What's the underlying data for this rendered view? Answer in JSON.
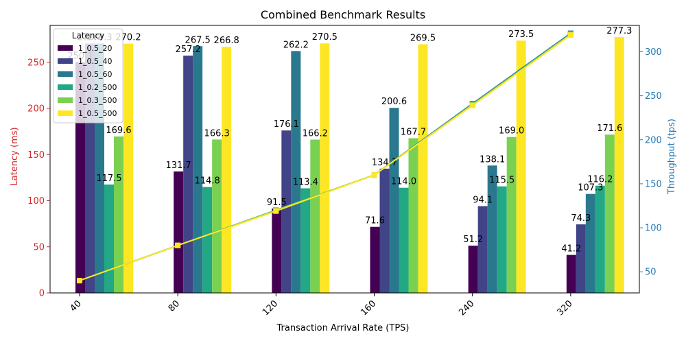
{
  "chart_data": {
    "type": "bar",
    "title": "Combined Benchmark Results",
    "xlabel": "Transaction Arrival Rate (TPS)",
    "ylabel": "Latency (ms)",
    "y2label": "Throughput (tps)",
    "categories": [
      "40",
      "80",
      "120",
      "160",
      "240",
      "320"
    ],
    "ylim": [
      0,
      290
    ],
    "y_ticks": [
      0,
      50,
      100,
      150,
      200,
      250
    ],
    "y2lim": [
      26,
      330
    ],
    "y2_ticks": [
      50,
      100,
      150,
      200,
      250,
      300
    ],
    "legend": {
      "title": "Latency",
      "placement": "top-left"
    },
    "grid": false,
    "series": [
      {
        "name": "1_0.5_20",
        "color": "#440154",
        "values": [
          250.1,
          131.7,
          91.5,
          71.6,
          51.2,
          41.2
        ],
        "labels": [
          "250.1",
          "131.7",
          "91.5",
          "71.6",
          "51.2",
          "41.2"
        ]
      },
      {
        "name": "1_0.5_40",
        "color": "#414487",
        "values": [
          270.3,
          257.2,
          176.1,
          134.7,
          94.1,
          74.3
        ],
        "labels": [
          "270.3",
          "257.2",
          "176.1",
          "134.7",
          "94.1",
          "74.3"
        ]
      },
      {
        "name": "1_0.5_60",
        "color": "#2a788e",
        "values": [
          270.3,
          267.5,
          262.2,
          200.6,
          138.1,
          107.3
        ],
        "labels": [
          "270.3",
          "267.5",
          "262.2",
          "200.6",
          "138.1",
          "107.3"
        ]
      },
      {
        "name": "1_0.2_500",
        "color": "#22a884",
        "values": [
          117.5,
          114.8,
          113.4,
          114.0,
          115.5,
          116.2
        ],
        "labels": [
          "117.5",
          "114.8",
          "113.4",
          "114.0",
          "115.5",
          "116.2"
        ]
      },
      {
        "name": "1_0.3_500",
        "color": "#7ad151",
        "values": [
          169.6,
          166.3,
          166.2,
          167.7,
          169.0,
          171.6
        ],
        "labels": [
          "169.6",
          "166.3",
          "166.2",
          "167.7",
          "169.0",
          "171.6"
        ]
      },
      {
        "name": "1_0.5_500",
        "color": "#fde725",
        "values": [
          270.2,
          266.8,
          270.5,
          269.5,
          273.5,
          277.3
        ],
        "labels": [
          "270.2",
          "266.8",
          "270.5",
          "269.5",
          "273.5",
          "277.3"
        ]
      }
    ],
    "throughput_series": [
      {
        "color": "#1f77b4",
        "values": [
          40,
          80,
          120,
          160,
          241,
          321
        ]
      },
      {
        "color": "#2a788e",
        "values": [
          40,
          80,
          120,
          160,
          240,
          320
        ]
      },
      {
        "color": "#22a884",
        "values": [
          40,
          80,
          120,
          160,
          240,
          320
        ]
      },
      {
        "color": "#7ad151",
        "values": [
          40,
          80,
          120,
          160,
          240,
          320
        ]
      },
      {
        "color": "#fde725",
        "values": [
          40,
          80,
          119,
          160,
          239,
          319
        ]
      }
    ],
    "colors": {
      "left_axis": "#d62728",
      "right_axis": "#1f77b4"
    }
  }
}
